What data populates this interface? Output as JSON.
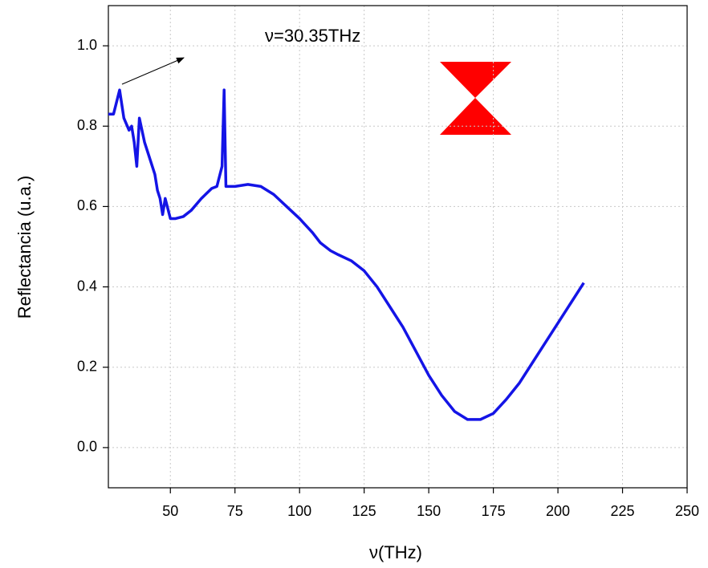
{
  "chart_data": {
    "type": "line",
    "xlabel": "ν(THz)",
    "ylabel": "Reflectancia (u.a.)",
    "annotation": "ν=30.35THz",
    "xlim": [
      26,
      250
    ],
    "ylim": [
      -0.1,
      1.1
    ],
    "xticks": [
      50,
      75,
      100,
      125,
      150,
      175,
      200,
      225,
      250
    ],
    "yticks": [
      {
        "value": 0,
        "label": "0.0"
      },
      0.2,
      0.4,
      0.6,
      0.8,
      {
        "value": 1,
        "label": "1.0"
      }
    ],
    "grid": true,
    "series": [
      {
        "color": "#1414e6",
        "x": [
          26,
          28,
          30.35,
          32,
          34,
          35,
          36,
          37,
          38,
          40,
          42,
          44,
          45,
          46,
          47,
          48,
          50,
          52,
          55,
          58,
          62,
          66,
          68,
          70,
          70.8,
          71.5,
          75,
          80,
          85,
          90,
          95,
          100,
          105,
          108,
          110,
          112,
          115,
          120,
          125,
          130,
          135,
          140,
          145,
          150,
          155,
          160,
          165,
          170,
          175,
          180,
          185,
          190,
          195,
          200,
          205,
          210
        ],
        "values": [
          0.83,
          0.83,
          0.89,
          0.82,
          0.79,
          0.8,
          0.76,
          0.7,
          0.82,
          0.76,
          0.72,
          0.68,
          0.64,
          0.62,
          0.58,
          0.62,
          0.57,
          0.57,
          0.575,
          0.59,
          0.62,
          0.645,
          0.65,
          0.7,
          0.89,
          0.65,
          0.65,
          0.655,
          0.65,
          0.63,
          0.6,
          0.57,
          0.535,
          0.51,
          0.5,
          0.49,
          0.48,
          0.465,
          0.44,
          0.4,
          0.35,
          0.3,
          0.24,
          0.18,
          0.13,
          0.09,
          0.07,
          0.07,
          0.085,
          0.12,
          0.16,
          0.21,
          0.26,
          0.31,
          0.36,
          0.41
        ]
      }
    ]
  }
}
